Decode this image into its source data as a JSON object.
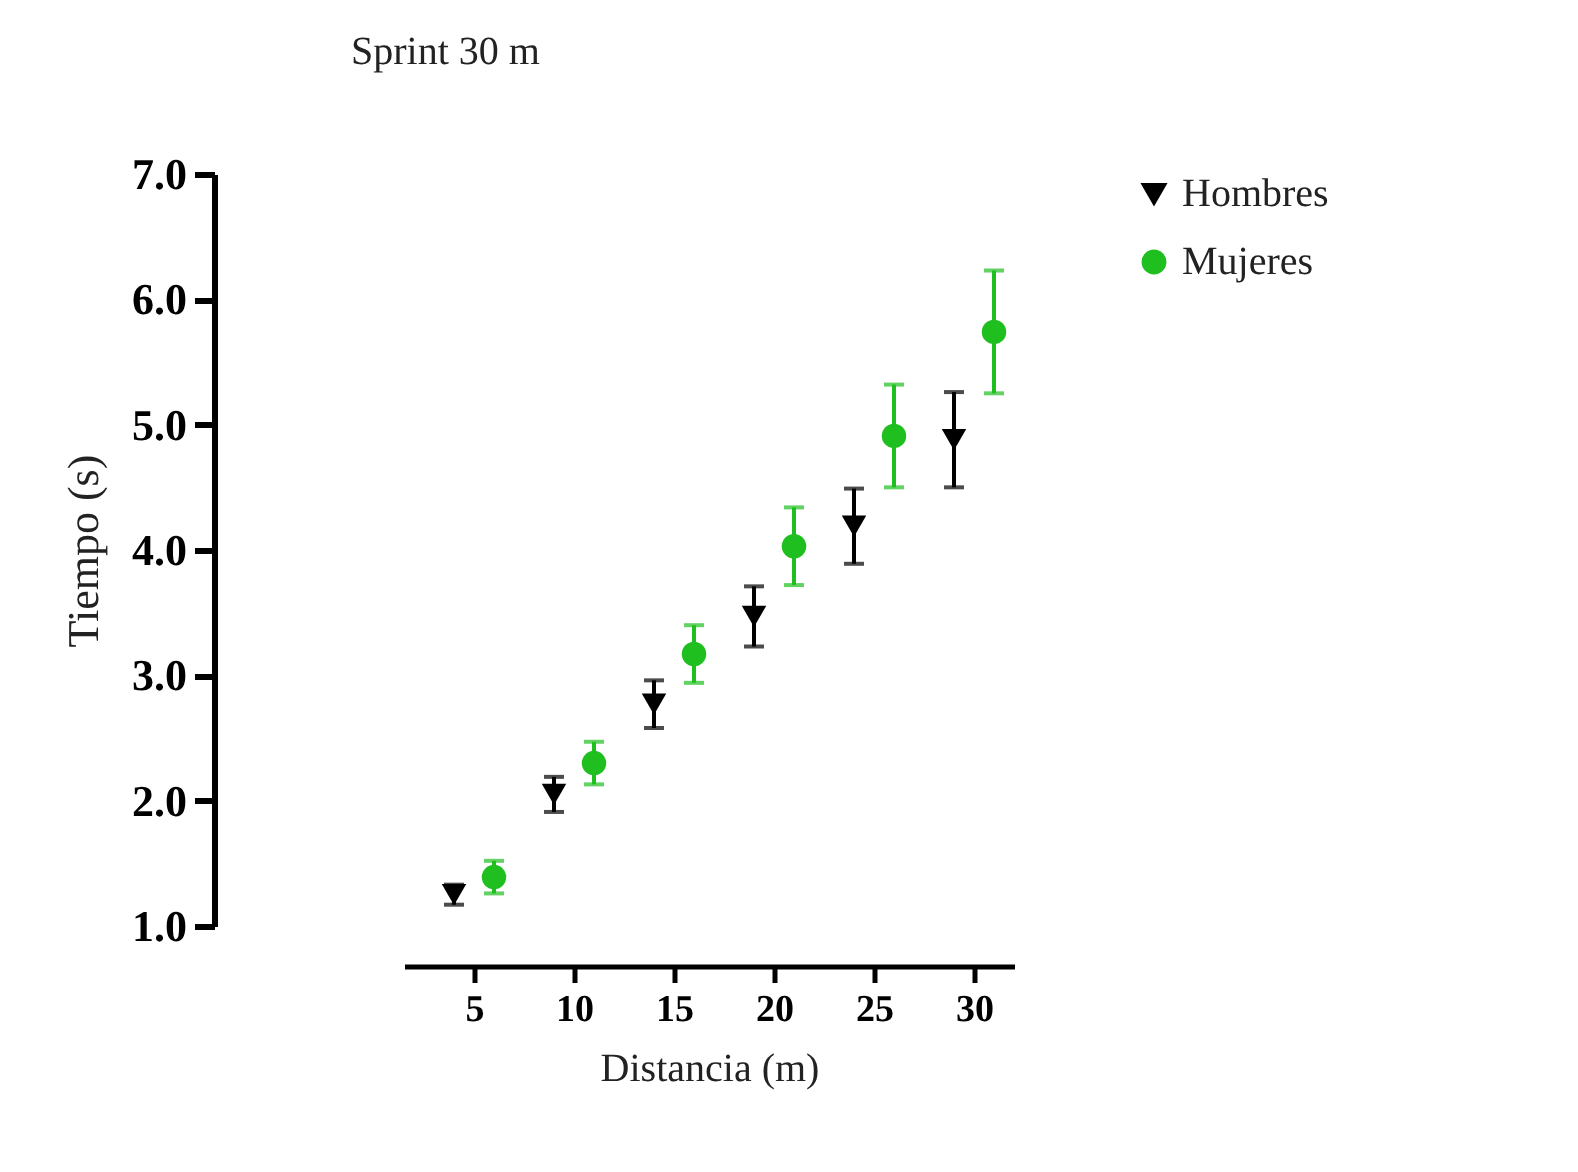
{
  "chart_data": {
    "type": "scatter",
    "title": "Sprint 30 m",
    "xlabel": "Distancia (m)",
    "ylabel": "Tiempo (s)",
    "xlim": [
      1.5,
      32
    ],
    "xticks": [
      5,
      10,
      15,
      20,
      25,
      30
    ],
    "ylim": [
      1,
      7
    ],
    "yticks": [
      {
        "value": 1,
        "label": "1.0"
      },
      {
        "value": 2,
        "label": "2.0"
      },
      {
        "value": 3,
        "label": "3.0"
      },
      {
        "value": 4,
        "label": "4.0"
      },
      {
        "value": 5,
        "label": "5.0"
      },
      {
        "value": 6,
        "label": "6.0"
      },
      {
        "value": 7,
        "label": "7.0"
      }
    ],
    "grid": false,
    "legend": "top right",
    "series": [
      {
        "name": "Hombres",
        "color": "#000000",
        "marker": "triangle",
        "x": [
          4,
          9,
          14,
          19,
          24,
          29
        ],
        "values": [
          1.25,
          2.05,
          2.77,
          3.47,
          4.19,
          4.88
        ],
        "errors": [
          0.08,
          0.14,
          0.19,
          0.24,
          0.3,
          0.38
        ]
      },
      {
        "name": "Mujeres",
        "color": "#1fbf1f",
        "marker": "circle",
        "x": [
          6,
          11,
          16,
          21,
          26,
          31
        ],
        "values": [
          1.39,
          2.3,
          3.17,
          4.03,
          4.91,
          5.74
        ],
        "errors": [
          0.13,
          0.17,
          0.23,
          0.31,
          0.41,
          0.49
        ]
      }
    ]
  }
}
